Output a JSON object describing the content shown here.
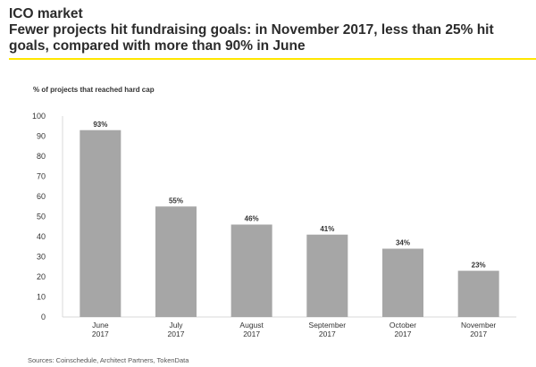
{
  "header": {
    "title": "ICO market",
    "subtitle": "Fewer projects hit fundraising goals: in November 2017, less than 25% hit goals, compared with more than 90% in June"
  },
  "colors": {
    "accent": "#ffe600",
    "bar": "#a6a6a6",
    "axis": "#d9d9d9",
    "text": "#333333"
  },
  "chart_data": {
    "type": "bar",
    "ylabel": "% of projects that reached hard cap",
    "categories": [
      [
        "June",
        "2017"
      ],
      [
        "July",
        "2017"
      ],
      [
        "August",
        "2017"
      ],
      [
        "September",
        "2017"
      ],
      [
        "October",
        "2017"
      ],
      [
        "November",
        "2017"
      ]
    ],
    "values": [
      93,
      55,
      46,
      41,
      34,
      23
    ],
    "value_labels": [
      "93%",
      "55%",
      "46%",
      "41%",
      "34%",
      "23%"
    ],
    "ylim": [
      0,
      100
    ],
    "yticks": [
      0,
      10,
      20,
      30,
      40,
      50,
      60,
      70,
      80,
      90,
      100
    ],
    "grid": false,
    "legend": "none"
  },
  "footer": {
    "source": "Sources: Coinschedule, Architect Partners, TokenData"
  }
}
